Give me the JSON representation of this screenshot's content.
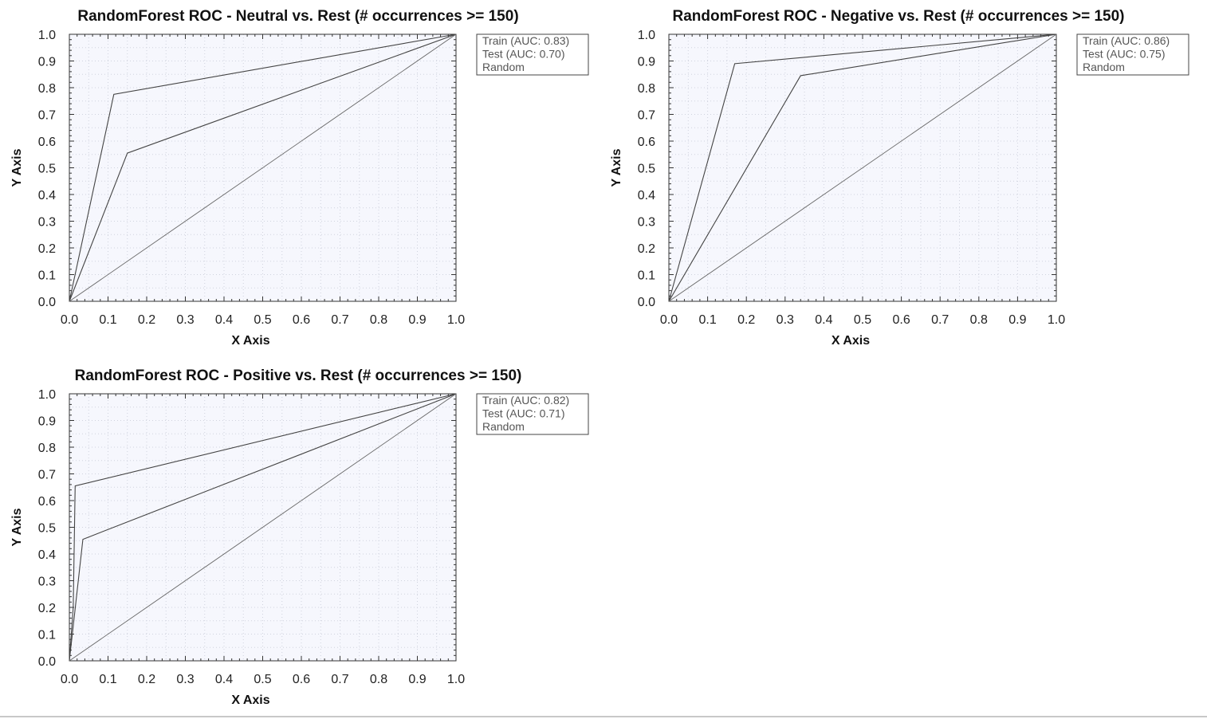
{
  "chart_data": [
    {
      "type": "line",
      "title": "RandomForest ROC - Neutral vs. Rest (# occurrences >= 150)",
      "xlabel": "X Axis",
      "ylabel": "Y Axis",
      "xlim": [
        0,
        1
      ],
      "ylim": [
        0,
        1
      ],
      "x_ticks": [
        "0.0",
        "0.1",
        "0.2",
        "0.3",
        "0.4",
        "0.5",
        "0.6",
        "0.7",
        "0.8",
        "0.9",
        "1.0"
      ],
      "y_ticks": [
        "0.0",
        "0.1",
        "0.2",
        "0.3",
        "0.4",
        "0.5",
        "0.6",
        "0.7",
        "0.8",
        "0.9",
        "1.0"
      ],
      "grid": true,
      "legend_position": "top-right-outside",
      "series": [
        {
          "name": "Train (AUC: 0.83)",
          "x": [
            0.0,
            0.115,
            1.0
          ],
          "y": [
            0.0,
            0.775,
            1.0
          ]
        },
        {
          "name": "Test (AUC: 0.70)",
          "x": [
            0.0,
            0.15,
            1.0
          ],
          "y": [
            0.0,
            0.555,
            1.0
          ]
        },
        {
          "name": "Random",
          "x": [
            0.0,
            1.0
          ],
          "y": [
            0.0,
            1.0
          ]
        }
      ]
    },
    {
      "type": "line",
      "title": "RandomForest ROC - Negative vs. Rest (# occurrences >= 150)",
      "xlabel": "X Axis",
      "ylabel": "Y Axis",
      "xlim": [
        0,
        1
      ],
      "ylim": [
        0,
        1
      ],
      "x_ticks": [
        "0.0",
        "0.1",
        "0.2",
        "0.3",
        "0.4",
        "0.5",
        "0.6",
        "0.7",
        "0.8",
        "0.9",
        "1.0"
      ],
      "y_ticks": [
        "0.0",
        "0.1",
        "0.2",
        "0.3",
        "0.4",
        "0.5",
        "0.6",
        "0.7",
        "0.8",
        "0.9",
        "1.0"
      ],
      "grid": true,
      "legend_position": "top-right-outside",
      "series": [
        {
          "name": "Train (AUC: 0.86)",
          "x": [
            0.0,
            0.17,
            1.0
          ],
          "y": [
            0.0,
            0.89,
            1.0
          ]
        },
        {
          "name": "Test (AUC: 0.75)",
          "x": [
            0.0,
            0.34,
            1.0
          ],
          "y": [
            0.0,
            0.845,
            1.0
          ]
        },
        {
          "name": "Random",
          "x": [
            0.0,
            1.0
          ],
          "y": [
            0.0,
            1.0
          ]
        }
      ]
    },
    {
      "type": "line",
      "title": "RandomForest ROC - Positive vs. Rest (# occurrences >= 150)",
      "xlabel": "X Axis",
      "ylabel": "Y Axis",
      "xlim": [
        0,
        1
      ],
      "ylim": [
        0,
        1
      ],
      "x_ticks": [
        "0.0",
        "0.1",
        "0.2",
        "0.3",
        "0.4",
        "0.5",
        "0.6",
        "0.7",
        "0.8",
        "0.9",
        "1.0"
      ],
      "y_ticks": [
        "0.0",
        "0.1",
        "0.2",
        "0.3",
        "0.4",
        "0.5",
        "0.6",
        "0.7",
        "0.8",
        "0.9",
        "1.0"
      ],
      "grid": true,
      "legend_position": "top-right-outside",
      "series": [
        {
          "name": "Train (AUC: 0.82)",
          "x": [
            0.0,
            0.01,
            0.015,
            1.0
          ],
          "y": [
            0.0,
            0.2,
            0.655,
            1.0
          ]
        },
        {
          "name": "Test (AUC: 0.71)",
          "x": [
            0.0,
            0.035,
            1.0
          ],
          "y": [
            0.0,
            0.455,
            1.0
          ]
        },
        {
          "name": "Random",
          "x": [
            0.0,
            1.0
          ],
          "y": [
            0.0,
            1.0
          ]
        }
      ]
    }
  ],
  "colors": {
    "plot_background": "#f6f7fd",
    "axis_line": "#333333",
    "grid": "#d0d3de",
    "train_line": "#444444",
    "test_line": "#444444",
    "random_line": "#666666",
    "legend_border": "#444444"
  }
}
